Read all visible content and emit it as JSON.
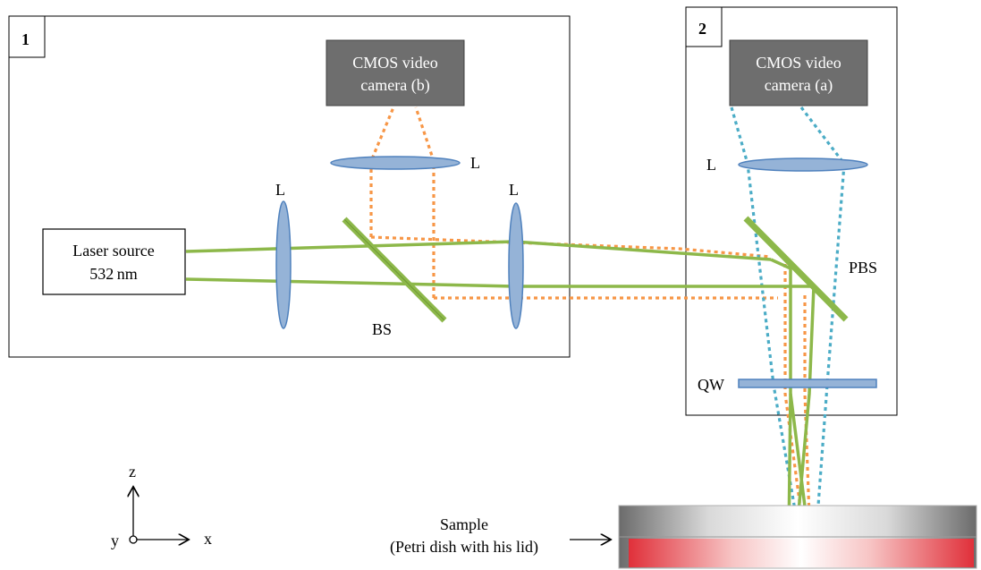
{
  "panels": {
    "panel1": {
      "number": "1"
    },
    "panel2": {
      "number": "2"
    }
  },
  "cameras": {
    "camera_b": {
      "line1": "CMOS video",
      "line2": "camera (b)"
    },
    "camera_a": {
      "line1": "CMOS video",
      "line2": "camera (a)"
    }
  },
  "laser": {
    "line1": "Laser source",
    "line2": "532 nm"
  },
  "optics": {
    "lens_label": "L",
    "beam_splitter": "BS",
    "polarizing_beam_splitter": "PBS",
    "quarter_wave": "QW"
  },
  "sample": {
    "line1": "Sample",
    "line2": "(Petri dish with his lid)"
  },
  "axes": {
    "z": "z",
    "y": "y",
    "x": "x"
  },
  "colors": {
    "green_beam": "#8db84a",
    "orange_beam": "#f79646",
    "blue_beam": "#4bacc6",
    "lens_fill": "#95b3d7",
    "lens_stroke": "#4f81bd",
    "camera_fill": "#6e6e6e",
    "dish_red": "#e8484a"
  }
}
